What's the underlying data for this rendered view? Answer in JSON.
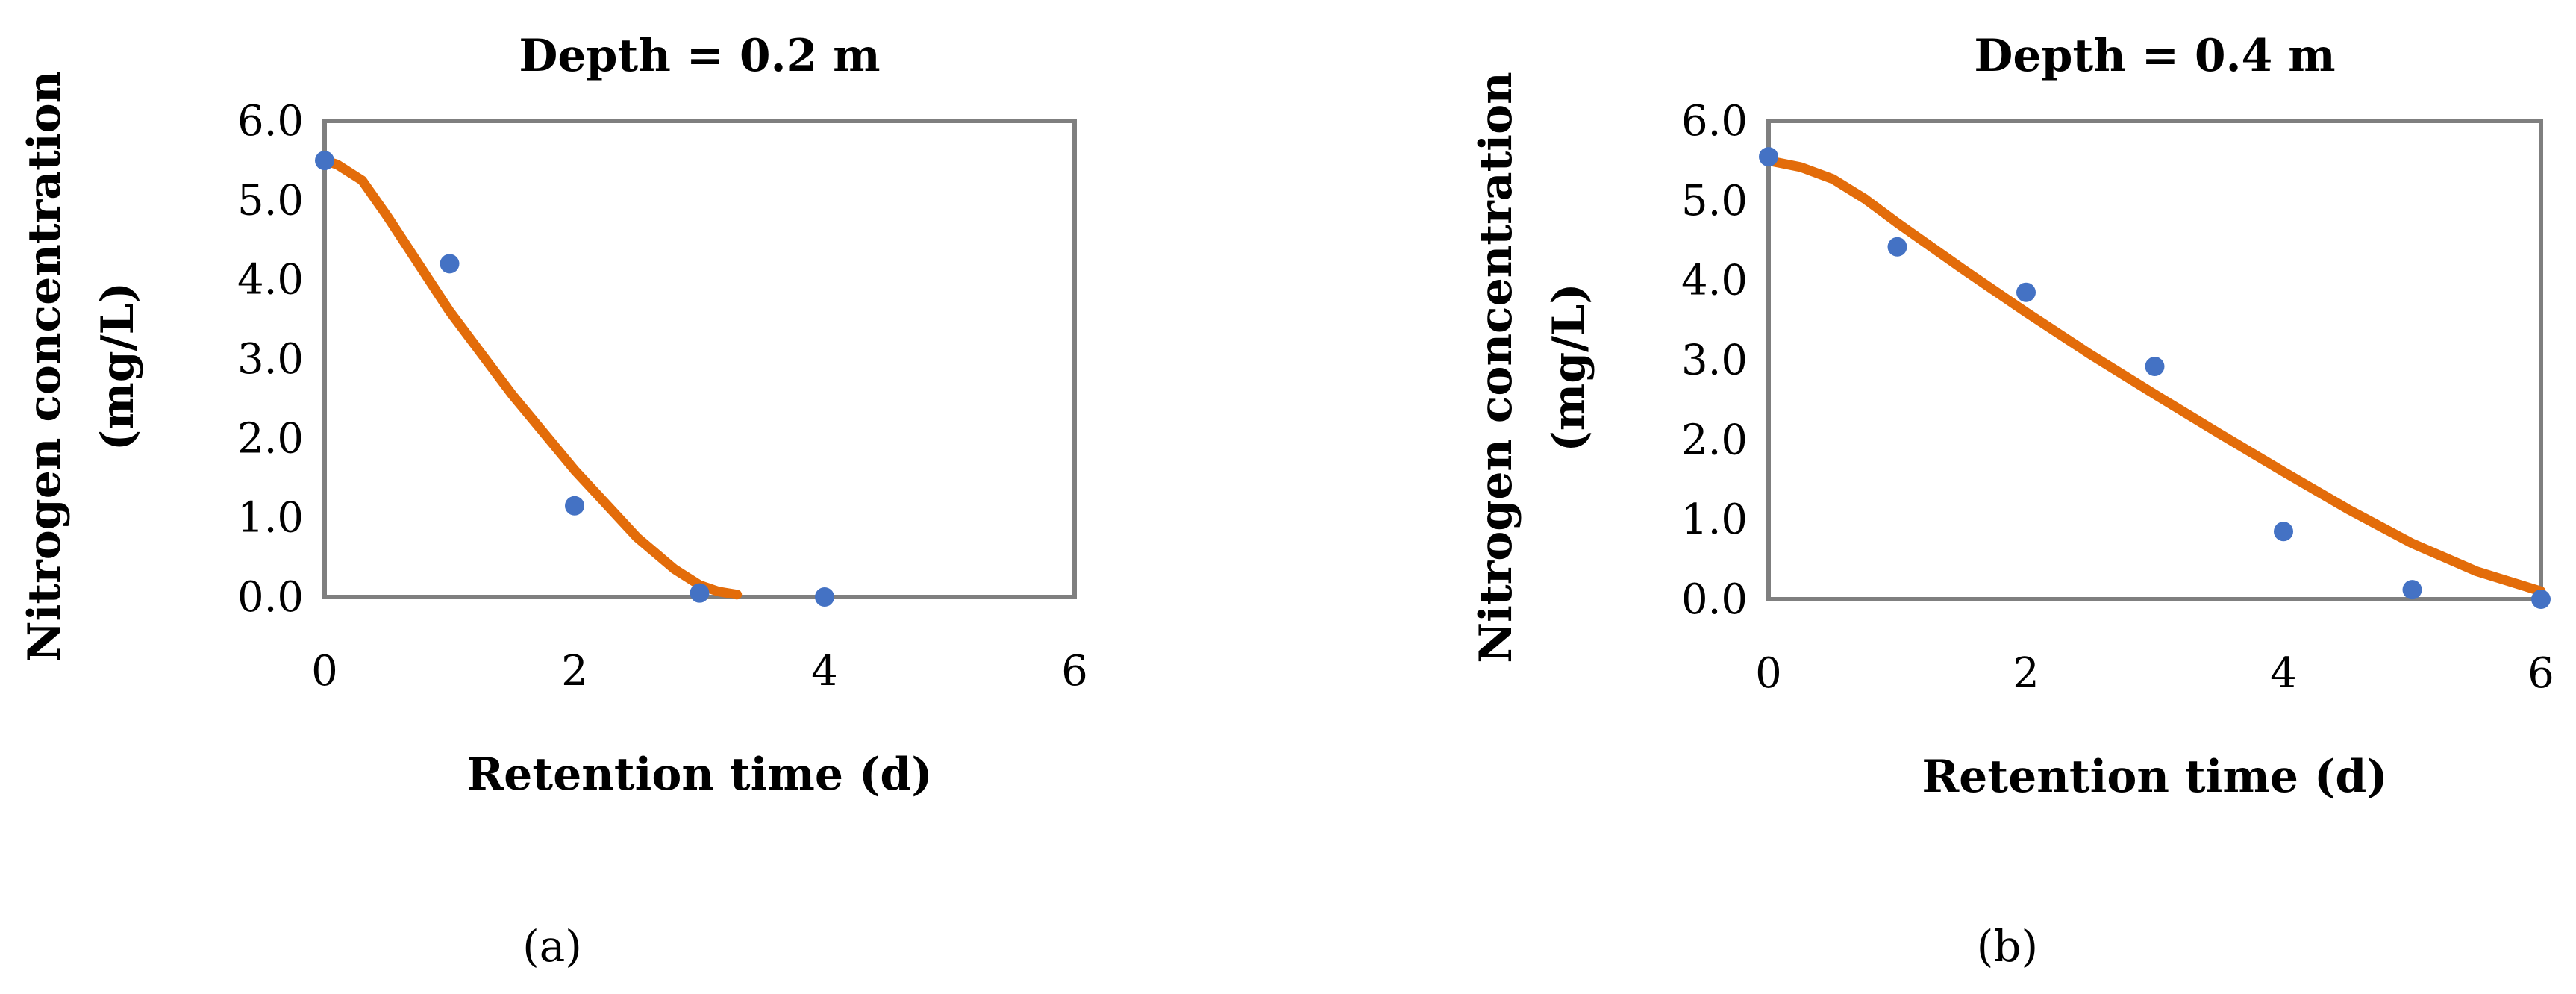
{
  "chart_data": [
    {
      "type": "scatter",
      "panel_label": "(a)",
      "title": "Depth = 0.2 m",
      "xlabel": "Retention time (d)",
      "ylabel": "Nitrogen concentration (mg/L)",
      "ylabel_lines": [
        "Nitrogen concentration",
        "(mg/L)"
      ],
      "xlim": [
        0,
        6
      ],
      "ylim": [
        0,
        6
      ],
      "x_ticks": [
        "0",
        "2",
        "4",
        "6"
      ],
      "y_ticks": [
        "0.0",
        "1.0",
        "2.0",
        "3.0",
        "4.0",
        "5.0",
        "6.0"
      ],
      "grid": false,
      "series": [
        {
          "kind": "points",
          "color": "#4472C4",
          "x": [
            0,
            1,
            2,
            3,
            4
          ],
          "y": [
            5.5,
            4.2,
            1.15,
            0.05,
            0.0
          ]
        },
        {
          "kind": "line",
          "color": "#E36C0A",
          "x": [
            0,
            0.1,
            0.3,
            0.5,
            1.0,
            1.5,
            2.0,
            2.5,
            2.8,
            3.0,
            3.15,
            3.3
          ],
          "y": [
            5.5,
            5.45,
            5.25,
            4.8,
            3.6,
            2.55,
            1.6,
            0.75,
            0.35,
            0.15,
            0.07,
            0.03
          ]
        }
      ]
    },
    {
      "type": "scatter",
      "panel_label": "(b)",
      "title": "Depth = 0.4 m",
      "xlabel": "Retention time (d)",
      "ylabel": "Nitrogen concentration (mg/L)",
      "ylabel_lines": [
        "Nitrogen concentration",
        "(mg/L)"
      ],
      "xlim": [
        0,
        6
      ],
      "ylim": [
        0,
        6
      ],
      "x_ticks": [
        "0",
        "2",
        "4",
        "6"
      ],
      "y_ticks": [
        "0.0",
        "1.0",
        "2.0",
        "3.0",
        "4.0",
        "5.0",
        "6.0"
      ],
      "grid": false,
      "series": [
        {
          "kind": "points",
          "color": "#4472C4",
          "x": [
            0,
            1,
            2,
            3,
            4,
            5,
            6
          ],
          "y": [
            5.55,
            4.42,
            3.85,
            2.92,
            0.85,
            0.12,
            0.0
          ]
        },
        {
          "kind": "line",
          "color": "#E36C0A",
          "x": [
            0,
            0.25,
            0.5,
            0.75,
            1.0,
            1.5,
            2.0,
            2.5,
            3.0,
            3.5,
            4.0,
            4.5,
            5.0,
            5.5,
            6.0
          ],
          "y": [
            5.5,
            5.42,
            5.27,
            5.02,
            4.72,
            4.15,
            3.6,
            3.07,
            2.57,
            2.08,
            1.6,
            1.13,
            0.7,
            0.35,
            0.1
          ]
        }
      ]
    }
  ]
}
